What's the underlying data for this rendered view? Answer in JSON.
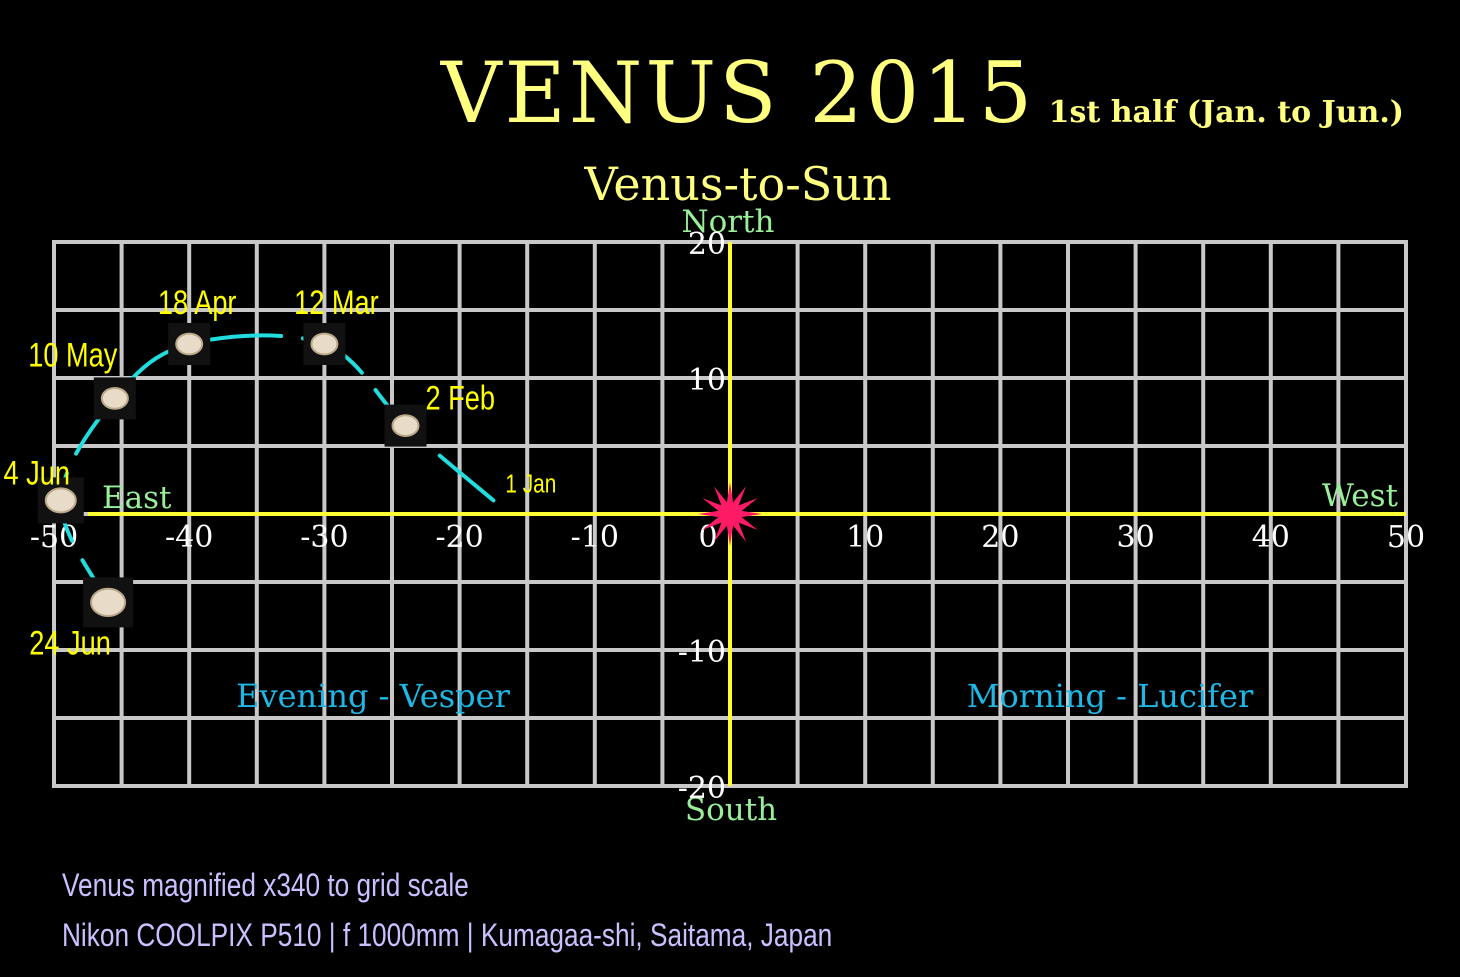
{
  "title": "VENUS 2015",
  "subtitle": "1st half (Jan. to Jun.)",
  "chart_title": "Venus-to-Sun",
  "directions": {
    "north": "North",
    "south": "South",
    "east": "East",
    "west": "West"
  },
  "regions": {
    "evening": "Evening - Vesper",
    "morning": "Morning - Lucifer"
  },
  "footer": {
    "line1": "Venus magnified x340 to grid scale",
    "line2": "Nikon COOLPIX P510 | f 1000mm | Kumagaa-shi, Saitama, Japan"
  },
  "colors": {
    "title": "#ffff80",
    "grid": "#c8c8c8",
    "axis": "#ffff33",
    "direction_label": "#99ee99",
    "region_label": "#1fb8e6",
    "track": "#22dddd",
    "date_label": "#ffff00",
    "sun": "#ff1a66",
    "footer": "#c9c0ff",
    "tick_label": "#ffffff"
  },
  "chart_data": {
    "type": "scatter",
    "xlim": [
      -50,
      50
    ],
    "ylim": [
      -20,
      20
    ],
    "grid": true,
    "x_ticks": [
      -50,
      -40,
      -30,
      -20,
      -10,
      0,
      10,
      20,
      30,
      40,
      50
    ],
    "y_ticks": [
      20,
      10,
      -10,
      -20
    ],
    "sun": {
      "x": 0,
      "y": 0
    },
    "points": [
      {
        "label": "1 Jan",
        "x": -17.5,
        "y": 1.0
      },
      {
        "label": "2 Feb",
        "x": -24,
        "y": 6.5
      },
      {
        "label": "12 Mar",
        "x": -30,
        "y": 12.5
      },
      {
        "label": "18 Apr",
        "x": -40,
        "y": 12.5
      },
      {
        "label": "10 May",
        "x": -45.5,
        "y": 8.5
      },
      {
        "label": "4 Jun",
        "x": -49.5,
        "y": 1.0
      },
      {
        "label": "24 Jun",
        "x": -46,
        "y": -6.5
      }
    ]
  }
}
